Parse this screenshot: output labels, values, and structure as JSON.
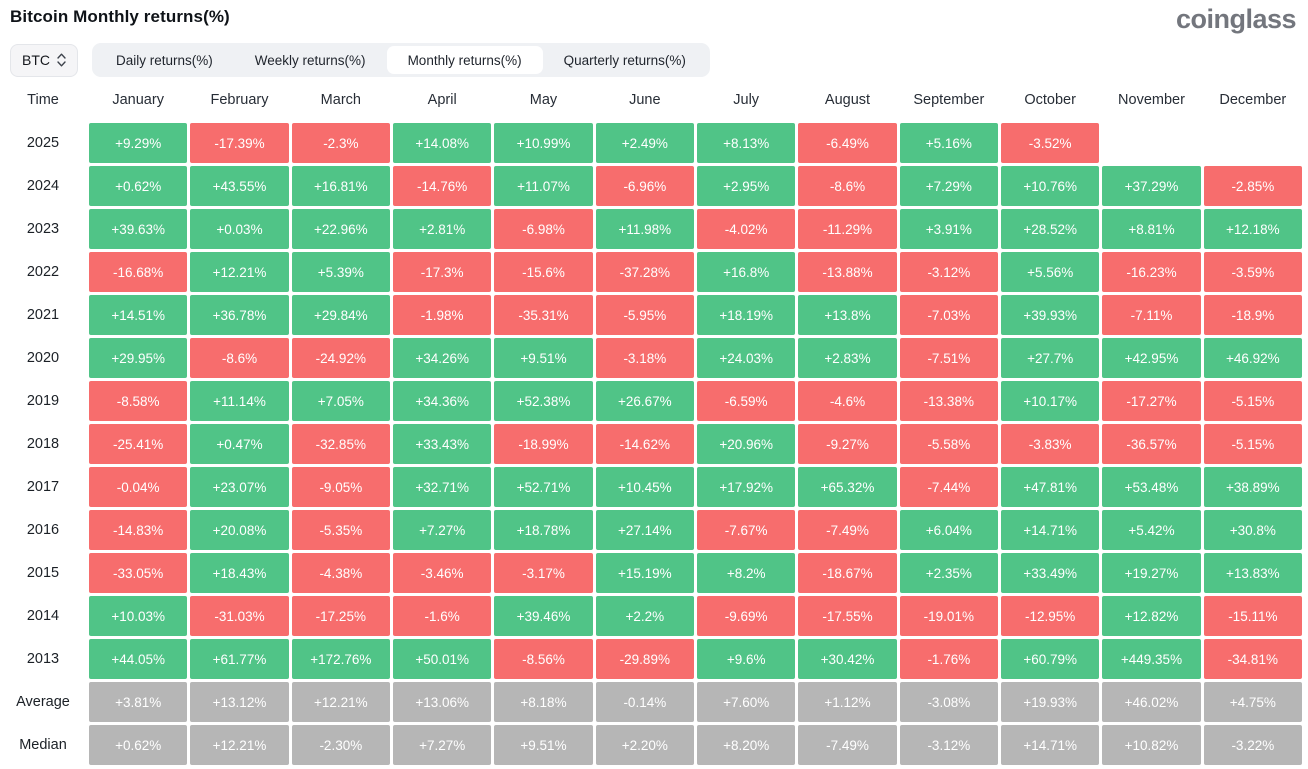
{
  "header": {
    "title": "Bitcoin Monthly returns(%)",
    "logo": "coinglass"
  },
  "controls": {
    "symbol_select": {
      "value": "BTC"
    },
    "tabs": [
      {
        "label": "Daily returns(%)",
        "active": false
      },
      {
        "label": "Weekly returns(%)",
        "active": false
      },
      {
        "label": "Monthly returns(%)",
        "active": true
      },
      {
        "label": "Quarterly returns(%)",
        "active": false
      }
    ]
  },
  "colors": {
    "positive": "#50c487",
    "negative": "#f76d6d",
    "summary": "#b6b6b6"
  },
  "table": {
    "time_header": "Time",
    "months": [
      "January",
      "February",
      "March",
      "April",
      "May",
      "June",
      "July",
      "August",
      "September",
      "October",
      "November",
      "December"
    ],
    "rows": [
      {
        "label": "2025",
        "type": "year",
        "values": [
          "+9.29%",
          "-17.39%",
          "-2.3%",
          "+14.08%",
          "+10.99%",
          "+2.49%",
          "+8.13%",
          "-6.49%",
          "+5.16%",
          "-3.52%",
          "",
          ""
        ]
      },
      {
        "label": "2024",
        "type": "year",
        "values": [
          "+0.62%",
          "+43.55%",
          "+16.81%",
          "-14.76%",
          "+11.07%",
          "-6.96%",
          "+2.95%",
          "-8.6%",
          "+7.29%",
          "+10.76%",
          "+37.29%",
          "-2.85%"
        ]
      },
      {
        "label": "2023",
        "type": "year",
        "values": [
          "+39.63%",
          "+0.03%",
          "+22.96%",
          "+2.81%",
          "-6.98%",
          "+11.98%",
          "-4.02%",
          "-11.29%",
          "+3.91%",
          "+28.52%",
          "+8.81%",
          "+12.18%"
        ]
      },
      {
        "label": "2022",
        "type": "year",
        "values": [
          "-16.68%",
          "+12.21%",
          "+5.39%",
          "-17.3%",
          "-15.6%",
          "-37.28%",
          "+16.8%",
          "-13.88%",
          "-3.12%",
          "+5.56%",
          "-16.23%",
          "-3.59%"
        ]
      },
      {
        "label": "2021",
        "type": "year",
        "values": [
          "+14.51%",
          "+36.78%",
          "+29.84%",
          "-1.98%",
          "-35.31%",
          "-5.95%",
          "+18.19%",
          "+13.8%",
          "-7.03%",
          "+39.93%",
          "-7.11%",
          "-18.9%"
        ]
      },
      {
        "label": "2020",
        "type": "year",
        "values": [
          "+29.95%",
          "-8.6%",
          "-24.92%",
          "+34.26%",
          "+9.51%",
          "-3.18%",
          "+24.03%",
          "+2.83%",
          "-7.51%",
          "+27.7%",
          "+42.95%",
          "+46.92%"
        ]
      },
      {
        "label": "2019",
        "type": "year",
        "values": [
          "-8.58%",
          "+11.14%",
          "+7.05%",
          "+34.36%",
          "+52.38%",
          "+26.67%",
          "-6.59%",
          "-4.6%",
          "-13.38%",
          "+10.17%",
          "-17.27%",
          "-5.15%"
        ]
      },
      {
        "label": "2018",
        "type": "year",
        "values": [
          "-25.41%",
          "+0.47%",
          "-32.85%",
          "+33.43%",
          "-18.99%",
          "-14.62%",
          "+20.96%",
          "-9.27%",
          "-5.58%",
          "-3.83%",
          "-36.57%",
          "-5.15%"
        ]
      },
      {
        "label": "2017",
        "type": "year",
        "values": [
          "-0.04%",
          "+23.07%",
          "-9.05%",
          "+32.71%",
          "+52.71%",
          "+10.45%",
          "+17.92%",
          "+65.32%",
          "-7.44%",
          "+47.81%",
          "+53.48%",
          "+38.89%"
        ]
      },
      {
        "label": "2016",
        "type": "year",
        "values": [
          "-14.83%",
          "+20.08%",
          "-5.35%",
          "+7.27%",
          "+18.78%",
          "+27.14%",
          "-7.67%",
          "-7.49%",
          "+6.04%",
          "+14.71%",
          "+5.42%",
          "+30.8%"
        ]
      },
      {
        "label": "2015",
        "type": "year",
        "values": [
          "-33.05%",
          "+18.43%",
          "-4.38%",
          "-3.46%",
          "-3.17%",
          "+15.19%",
          "+8.2%",
          "-18.67%",
          "+2.35%",
          "+33.49%",
          "+19.27%",
          "+13.83%"
        ]
      },
      {
        "label": "2014",
        "type": "year",
        "values": [
          "+10.03%",
          "-31.03%",
          "-17.25%",
          "-1.6%",
          "+39.46%",
          "+2.2%",
          "-9.69%",
          "-17.55%",
          "-19.01%",
          "-12.95%",
          "+12.82%",
          "-15.11%"
        ]
      },
      {
        "label": "2013",
        "type": "year",
        "values": [
          "+44.05%",
          "+61.77%",
          "+172.76%",
          "+50.01%",
          "-8.56%",
          "-29.89%",
          "+9.6%",
          "+30.42%",
          "-1.76%",
          "+60.79%",
          "+449.35%",
          "-34.81%"
        ]
      },
      {
        "label": "Average",
        "type": "summary",
        "values": [
          "+3.81%",
          "+13.12%",
          "+12.21%",
          "+13.06%",
          "+8.18%",
          "-0.14%",
          "+7.60%",
          "+1.12%",
          "-3.08%",
          "+19.93%",
          "+46.02%",
          "+4.75%"
        ]
      },
      {
        "label": "Median",
        "type": "summary",
        "values": [
          "+0.62%",
          "+12.21%",
          "-2.30%",
          "+7.27%",
          "+9.51%",
          "+2.20%",
          "+8.20%",
          "-7.49%",
          "-3.12%",
          "+14.71%",
          "+10.82%",
          "-3.22%"
        ]
      }
    ]
  }
}
